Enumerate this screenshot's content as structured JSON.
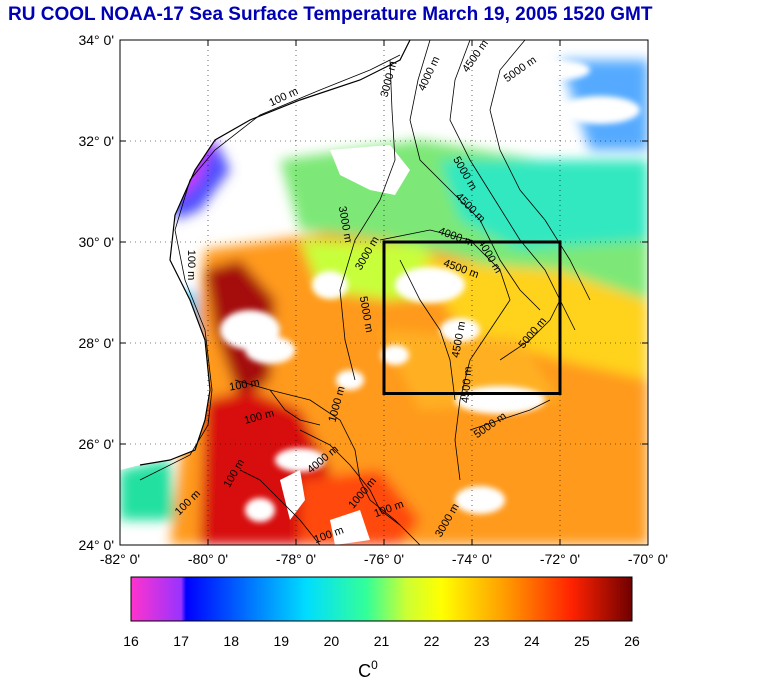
{
  "title": "RU COOL  NOAA-17 Sea Surface Temperature March 19, 2005 1520 GMT",
  "map": {
    "lat_labels": [
      "34° 0'",
      "32° 0'",
      "30° 0'",
      "28° 0'",
      "26° 0'",
      "24° 0'"
    ],
    "lon_labels": [
      "-82° 0'",
      "-80° 0'",
      "-78° 0'",
      "-76° 0'",
      "-74° 0'",
      "-72° 0'",
      "-70° 0'"
    ],
    "lat_range": [
      24,
      34
    ],
    "lon_range": [
      -82,
      -70
    ],
    "study_box": {
      "lon": [
        -76,
        -72
      ],
      "lat": [
        27,
        30
      ]
    },
    "land_color": "#ffffff",
    "contour_labels": [
      {
        "text": "100 m"
      },
      {
        "text": "100 m"
      },
      {
        "text": "3000 m"
      },
      {
        "text": "4000 m"
      },
      {
        "text": "4500 m"
      },
      {
        "text": "5000 m"
      },
      {
        "text": "3000 m"
      },
      {
        "text": "5000 m"
      },
      {
        "text": "4500 m"
      },
      {
        "text": "4000 m"
      },
      {
        "text": "4500 m"
      },
      {
        "text": "4000 m"
      },
      {
        "text": "5000 m"
      },
      {
        "text": "3000 m"
      },
      {
        "text": "4500 m"
      },
      {
        "text": "5000 m"
      },
      {
        "text": "4500 m"
      },
      {
        "text": "5000 m"
      },
      {
        "text": "100 m"
      },
      {
        "text": "100 m"
      },
      {
        "text": "1000 m"
      },
      {
        "text": "100 m"
      },
      {
        "text": "100 m"
      },
      {
        "text": "4000 m"
      },
      {
        "text": "1000 m"
      },
      {
        "text": "100 m"
      },
      {
        "text": "3000 m"
      },
      {
        "text": "100 m"
      }
    ]
  },
  "colorbar": {
    "ticks": [
      "16",
      "17",
      "18",
      "19",
      "20",
      "21",
      "22",
      "23",
      "24",
      "25",
      "26"
    ],
    "unit": "C",
    "unit_superscript": "0",
    "range": [
      16,
      26
    ],
    "colors": [
      "#ff33cc",
      "#9933ff",
      "#0000ff",
      "#0080ff",
      "#00e0ff",
      "#66ff99",
      "#ccff33",
      "#ffff00",
      "#ffb000",
      "#ff4000",
      "#cc0000",
      "#800000"
    ]
  }
}
